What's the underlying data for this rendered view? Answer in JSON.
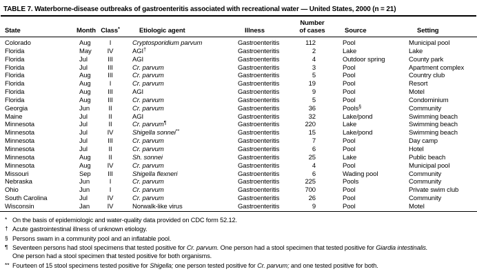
{
  "title": "TABLE 7. Waterborne-disease outbreaks of gastroenteritis associated with recreational water — United States, 2000 (n = 21)",
  "table": {
    "headers": {
      "state": "State",
      "month": "Month",
      "class_label": "Class",
      "class_sup": "*",
      "agent": "Etiologic agent",
      "illness": "Illness",
      "cases_line1": "Number",
      "cases_line2": "of cases",
      "source": "Source",
      "setting": "Setting"
    },
    "rows": [
      {
        "state": "Colorado",
        "month": "Aug",
        "class": "I",
        "agent": "Cryptosporidium parvum",
        "agent_italic": true,
        "illness": "Gastroenteritis",
        "cases": 112,
        "source": "Pool",
        "setting": "Municipal pool"
      },
      {
        "state": "Florida",
        "month": "May",
        "class": "IV",
        "agent": "AGI",
        "agent_italic": false,
        "agent_sup": "†",
        "illness": "Gastroenteritis",
        "cases": 2,
        "source": "Lake",
        "setting": "Lake"
      },
      {
        "state": "Florida",
        "month": "Jul",
        "class": "III",
        "agent": "AGI",
        "agent_italic": false,
        "illness": "Gastroenteritis",
        "cases": 4,
        "source": "Outdoor spring",
        "setting": "County park"
      },
      {
        "state": "Florida",
        "month": "Jul",
        "class": "III",
        "agent": "Cr. parvum",
        "agent_italic": true,
        "illness": "Gastroenteritis",
        "cases": 3,
        "source": "Pool",
        "setting": "Apartment complex"
      },
      {
        "state": "Florida",
        "month": "Aug",
        "class": "III",
        "agent": "Cr. parvum",
        "agent_italic": true,
        "illness": "Gastroenteritis",
        "cases": 5,
        "source": "Pool",
        "setting": "Country club"
      },
      {
        "state": "Florida",
        "month": "Aug",
        "class": "I",
        "agent": "Cr. parvum",
        "agent_italic": true,
        "illness": "Gastroenteritis",
        "cases": 19,
        "source": "Pool",
        "setting": "Resort"
      },
      {
        "state": "Florida",
        "month": "Aug",
        "class": "III",
        "agent": "AGI",
        "agent_italic": false,
        "illness": "Gastroenteritis",
        "cases": 9,
        "source": "Pool",
        "setting": "Motel"
      },
      {
        "state": "Florida",
        "month": "Aug",
        "class": "III",
        "agent": "Cr. parvum",
        "agent_italic": true,
        "illness": "Gastroenteritis",
        "cases": 5,
        "source": "Pool",
        "setting": "Condominium"
      },
      {
        "state": "Georgia",
        "month": "Jun",
        "class": "II",
        "agent": "Cr. parvum",
        "agent_italic": true,
        "illness": "Gastroenteritis",
        "cases": 36,
        "source": "Pools",
        "source_sup": "§",
        "setting": "Community"
      },
      {
        "state": "Maine",
        "month": "Jul",
        "class": "II",
        "agent": "AGI",
        "agent_italic": false,
        "illness": "Gastroenteritis",
        "cases": 32,
        "source": "Lake/pond",
        "setting": "Swimming beach"
      },
      {
        "state": "Minnesota",
        "month": "Jul",
        "class": "II",
        "agent": "Cr. parvum",
        "agent_italic": true,
        "agent_sup": "¶",
        "illness": "Gastroenteritis",
        "cases": 220,
        "source": "Lake",
        "setting": "Swimming beach"
      },
      {
        "state": "Minnesota",
        "month": "Jul",
        "class": "IV",
        "agent": "Shigella sonnei",
        "agent_italic": true,
        "agent_sup": "**",
        "illness": "Gastroenteritis",
        "cases": 15,
        "source": "Lake/pond",
        "setting": "Swimming beach"
      },
      {
        "state": "Minnesota",
        "month": "Jul",
        "class": "III",
        "agent": "Cr. parvum",
        "agent_italic": true,
        "illness": "Gastroenteritis",
        "cases": 7,
        "source": "Pool",
        "setting": "Day camp"
      },
      {
        "state": "Minnesota",
        "month": "Jul",
        "class": "II",
        "agent": "Cr. parvum",
        "agent_italic": true,
        "illness": "Gastroenteritis",
        "cases": 6,
        "source": "Pool",
        "setting": "Hotel"
      },
      {
        "state": "Minnesota",
        "month": "Aug",
        "class": "II",
        "agent": "Sh. sonnei",
        "agent_italic": true,
        "illness": "Gastroenteritis",
        "cases": 25,
        "source": "Lake",
        "setting": "Public beach"
      },
      {
        "state": "Minnesota",
        "month": "Aug",
        "class": "IV",
        "agent": "Cr. parvum",
        "agent_italic": true,
        "illness": "Gastroenteritis",
        "cases": 4,
        "source": "Pool",
        "setting": "Municipal pool"
      },
      {
        "state": "Missouri",
        "month": "Sep",
        "class": "III",
        "agent": "Shigella flexneri",
        "agent_italic": true,
        "illness": "Gastroenteritis",
        "cases": 6,
        "source": "Wading pool",
        "setting": "Community"
      },
      {
        "state": "Nebraska",
        "month": "Jun",
        "class": "I",
        "agent": "Cr. parvum",
        "agent_italic": true,
        "illness": "Gastroenteritis",
        "cases": 225,
        "source": "Pools",
        "setting": "Community"
      },
      {
        "state": "Ohio",
        "month": "Jun",
        "class": "I",
        "agent": "Cr. parvum",
        "agent_italic": true,
        "illness": "Gastroenteritis",
        "cases": 700,
        "source": "Pool",
        "setting": "Private swim club"
      },
      {
        "state": "South Carolina",
        "month": "Jul",
        "class": "IV",
        "agent": "Cr. parvum",
        "agent_italic": true,
        "illness": "Gastroenteritis",
        "cases": 26,
        "source": "Pool",
        "setting": "Community"
      },
      {
        "state": "Wisconsin",
        "month": "Jan",
        "class": "IV",
        "agent": "Norwalk-like virus",
        "agent_italic": false,
        "illness": "Gastroenteritis",
        "cases": 9,
        "source": "Pool",
        "setting": "Motel"
      }
    ]
  },
  "footnotes": [
    {
      "marker": "*",
      "lines": [
        [
          {
            "t": "On the basis of epidemiologic and water-quality data provided on CDC form 52.12."
          }
        ]
      ]
    },
    {
      "marker": "†",
      "lines": [
        [
          {
            "t": "Acute gastrointestinal illness of unknown etiology."
          }
        ]
      ]
    },
    {
      "marker": "§",
      "lines": [
        [
          {
            "t": "Persons swam in a community pool and an inflatable pool."
          }
        ]
      ]
    },
    {
      "marker": "¶",
      "lines": [
        [
          {
            "t": "Seventeen persons had stool specimens that tested positive for "
          },
          {
            "t": "Cr. parvum.",
            "i": true
          },
          {
            "t": " One person had a stool specimen that tested positive for "
          },
          {
            "t": "Giardia intestinalis.",
            "i": true
          }
        ],
        [
          {
            "t": "One person had a stool specimen that tested positive for both organisms."
          }
        ]
      ]
    },
    {
      "marker": "**",
      "lines": [
        [
          {
            "t": "Fourteen of 15 stool specimens tested positive for "
          },
          {
            "t": "Shigella;",
            "i": true
          },
          {
            "t": " one person tested positive for "
          },
          {
            "t": "Cr. parvum;",
            "i": true
          },
          {
            "t": " and one tested positive for both."
          }
        ]
      ]
    }
  ]
}
